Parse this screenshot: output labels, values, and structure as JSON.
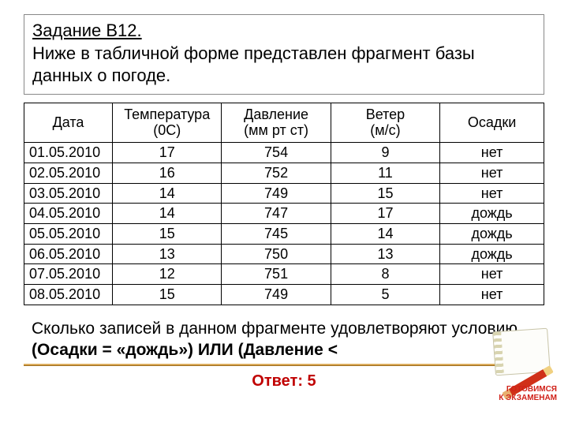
{
  "heading": {
    "title": "Задание В12.",
    "text": "Ниже в табличной форме представлен фрагмент базы данных о погоде."
  },
  "table": {
    "columns": [
      {
        "line1": "Дата",
        "line2": "",
        "width": "17%"
      },
      {
        "line1": "Температура",
        "line2": "(0С)",
        "width": "21%"
      },
      {
        "line1": "Давление",
        "line2": "(мм рт ст)",
        "width": "21%"
      },
      {
        "line1": "Ветер",
        "line2": "(м/с)",
        "width": "21%"
      },
      {
        "line1": "Осадки",
        "line2": "",
        "width": "20%"
      }
    ],
    "rows": [
      [
        "01.05.2010",
        "17",
        "754",
        "9",
        "нет"
      ],
      [
        "02.05.2010",
        "16",
        "752",
        "11",
        "нет"
      ],
      [
        "03.05.2010",
        "14",
        "749",
        "15",
        "нет"
      ],
      [
        "04.05.2010",
        "14",
        "747",
        "17",
        "дождь"
      ],
      [
        "05.05.2010",
        "15",
        "745",
        "14",
        "дождь"
      ],
      [
        "06.05.2010",
        "13",
        "750",
        "13",
        "дождь"
      ],
      [
        "07.05.2010",
        "12",
        "751",
        "8",
        "нет"
      ],
      [
        "08.05.2010",
        "15",
        "749",
        "5",
        "нет"
      ]
    ]
  },
  "question": {
    "line1": "Сколько записей в данном фрагменте удовлетворяют условию",
    "line2": "(Осадки = «дождь») ИЛИ (Давление  < "
  },
  "answer": "Ответ: 5",
  "stamp": {
    "line1": "ГОТОВИМСЯ",
    "line2": "К ЭКЗАМЕНАМ"
  },
  "colors": {
    "answer_color": "#c00000",
    "stamp_color": "#d02018",
    "border_color": "#000000",
    "background": "#ffffff"
  }
}
